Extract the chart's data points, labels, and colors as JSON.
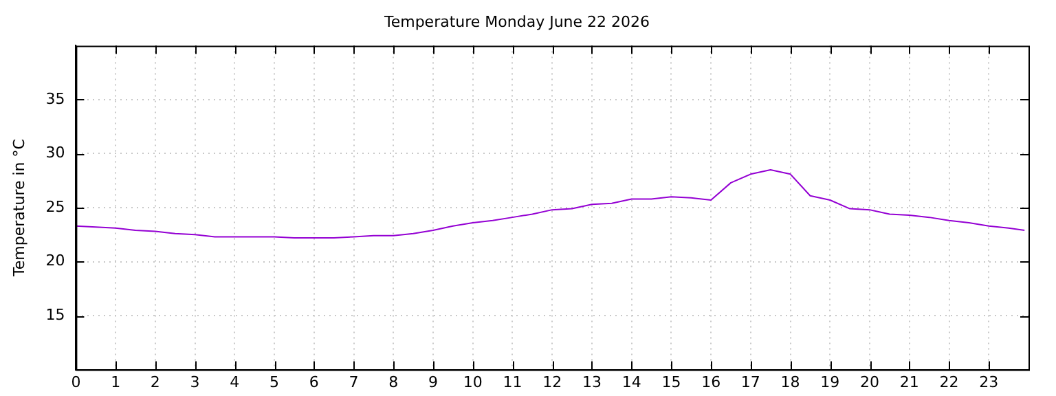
{
  "chart_data": {
    "type": "line",
    "title": "Temperature Monday June 22 2026",
    "ylabel": "Temperature in °C",
    "x": [
      0,
      0.5,
      1,
      1.5,
      2,
      2.5,
      3,
      3.5,
      4,
      4.5,
      5,
      5.5,
      6,
      6.5,
      7,
      7.5,
      8,
      8.5,
      9,
      9.5,
      10,
      10.5,
      11,
      11.5,
      12,
      12.5,
      13,
      13.5,
      14,
      14.5,
      15,
      15.5,
      16,
      16.5,
      17,
      17.5,
      18,
      18.5,
      19,
      19.5,
      20,
      20.5,
      21,
      21.5,
      22,
      22.5,
      23,
      23.5,
      23.9
    ],
    "series": [
      {
        "color": "#9400d3",
        "values": [
          23.3,
          23.2,
          23.1,
          22.9,
          22.8,
          22.6,
          22.5,
          22.3,
          22.3,
          22.3,
          22.3,
          22.2,
          22.2,
          22.2,
          22.3,
          22.4,
          22.4,
          22.6,
          22.9,
          23.3,
          23.6,
          23.8,
          24.1,
          24.4,
          24.8,
          24.9,
          25.3,
          25.4,
          25.8,
          25.8,
          26.0,
          25.9,
          25.7,
          27.3,
          28.1,
          28.5,
          28.1,
          26.1,
          25.7,
          24.9,
          24.8,
          24.4,
          24.3,
          24.1,
          23.8,
          23.6,
          23.3,
          23.1,
          22.9
        ]
      }
    ],
    "xlim": [
      0,
      24
    ],
    "xticks": [
      0,
      1,
      2,
      3,
      4,
      5,
      6,
      7,
      8,
      9,
      10,
      11,
      12,
      13,
      14,
      15,
      16,
      17,
      18,
      19,
      20,
      21,
      22,
      23
    ],
    "ylim": [
      10,
      40
    ],
    "yticks": [
      15,
      20,
      25,
      30,
      35
    ],
    "grid": true,
    "legend": false,
    "marker": "none",
    "line_style": "solid"
  }
}
